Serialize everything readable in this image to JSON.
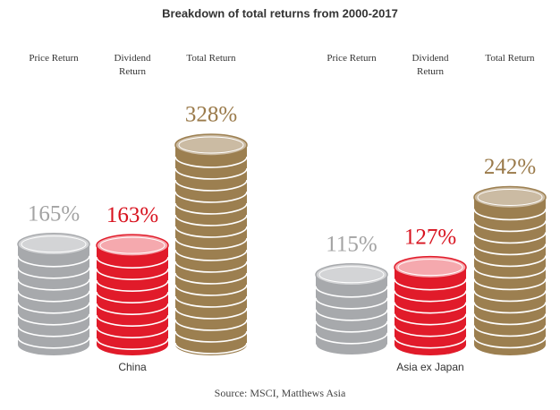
{
  "chart_data": {
    "type": "coin-stack",
    "title": "Breakdown of total returns from 2000-2017",
    "source": "Source: MSCI, Matthews Asia",
    "categories": [
      "China",
      "Asia ex Japan"
    ],
    "series": [
      {
        "name": "Price Return",
        "color": "#a7a9ac",
        "top_color": "#d3d4d6",
        "label_color": "#a3a3a3",
        "values": [
          165,
          115
        ],
        "value_labels": [
          "165%",
          "115%"
        ]
      },
      {
        "name": "Dividend Return",
        "color": "#e11b2a",
        "top_color": "#f5a9ae",
        "label_color": "#d8131f",
        "values": [
          163,
          127
        ],
        "value_labels": [
          "163%",
          "127%"
        ]
      },
      {
        "name": "Total Return",
        "color": "#9c7f50",
        "top_color": "#cbbba3",
        "label_color": "#9a7a4a",
        "values": [
          328,
          242
        ],
        "value_labels": [
          "328%",
          "242%"
        ]
      }
    ]
  }
}
